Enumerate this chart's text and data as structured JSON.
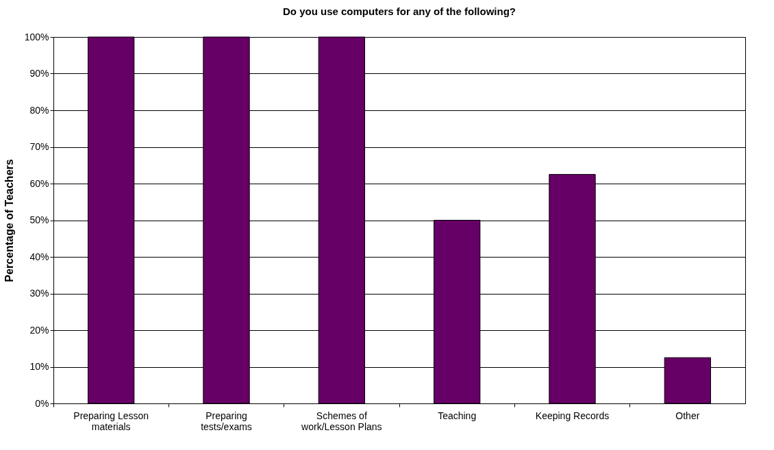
{
  "chart_data": {
    "type": "bar",
    "title": "Do you use computers for any of the following?",
    "ylabel": "Percentage of Teachers",
    "categories": [
      "Preparing Lesson materials",
      "Preparing tests/exams",
      "Schemes of work/Lesson Plans",
      "Teaching",
      "Keeping Records",
      "Other"
    ],
    "values": [
      100,
      100,
      100,
      50,
      62.5,
      12.5
    ],
    "color": "#660066",
    "ylim": [
      0,
      100
    ],
    "yticks": [
      {
        "value": 0,
        "label": "0%"
      },
      {
        "value": 10,
        "label": "10%"
      },
      {
        "value": 20,
        "label": "20%"
      },
      {
        "value": 30,
        "label": "30%"
      },
      {
        "value": 40,
        "label": "40%"
      },
      {
        "value": 50,
        "label": "50%"
      },
      {
        "value": 60,
        "label": "60%"
      },
      {
        "value": 70,
        "label": "70%"
      },
      {
        "value": 80,
        "label": "80%"
      },
      {
        "value": 90,
        "label": "90%"
      },
      {
        "value": 100,
        "label": "100%"
      }
    ],
    "grid": "y"
  }
}
